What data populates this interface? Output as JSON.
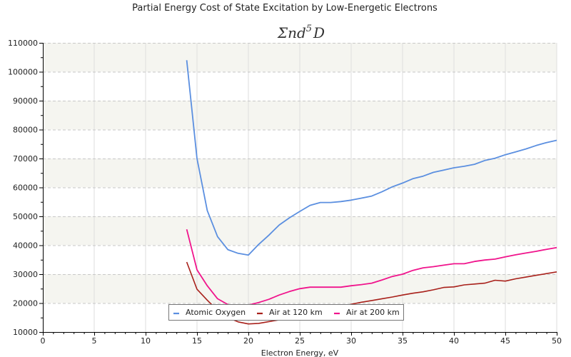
{
  "chart_data": {
    "type": "line",
    "title": "Partial Energy Cost of State Excitation by Low-Energetic Electrons",
    "subtitle": {
      "base": "Σnd",
      "sup": "5",
      "tail": "D"
    },
    "xlabel": "Electron Energy, eV",
    "ylabel": "",
    "xlim": [
      0,
      50
    ],
    "ylim": [
      10000,
      110000
    ],
    "xticks": [
      0,
      5,
      10,
      15,
      20,
      25,
      30,
      35,
      40,
      45,
      50
    ],
    "yticks": [
      10000,
      20000,
      30000,
      40000,
      50000,
      60000,
      70000,
      80000,
      90000,
      100000,
      110000
    ],
    "grid": true,
    "legend_position": "bottom-center",
    "series": [
      {
        "name": "Atomic Oxygen",
        "color": "#5b8fe0",
        "x": [
          14,
          15,
          16,
          17,
          18,
          19,
          20,
          21,
          22,
          23,
          24,
          25,
          26,
          27,
          28,
          29,
          30,
          31,
          32,
          33,
          34,
          35,
          36,
          37,
          38,
          39,
          40,
          41,
          42,
          43,
          44,
          45,
          46,
          47,
          48,
          49,
          50
        ],
        "y": [
          104000,
          70000,
          52000,
          43000,
          38500,
          37200,
          36600,
          40300,
          43500,
          47000,
          49500,
          51700,
          53800,
          54800,
          54800,
          55100,
          55600,
          56300,
          57000,
          58500,
          60200,
          61500,
          63000,
          63900,
          65200,
          66000,
          66800,
          67300,
          68000,
          69300,
          70100,
          71300,
          72300,
          73300,
          74500,
          75500,
          76300
        ]
      },
      {
        "name": "Air at 120 km",
        "color": "#a8201a",
        "x": [
          14,
          15,
          16,
          17,
          18,
          19,
          20,
          21,
          22,
          23,
          24,
          25,
          26,
          27,
          28,
          29,
          30,
          31,
          32,
          33,
          34,
          35,
          36,
          37,
          38,
          39,
          40,
          41,
          42,
          43,
          44,
          45,
          46,
          47,
          48,
          49,
          50
        ],
        "y": [
          34200,
          24800,
          21000,
          17500,
          15000,
          13500,
          12800,
          13000,
          13600,
          14200,
          15000,
          15800,
          16500,
          17200,
          17800,
          18500,
          19600,
          20300,
          20900,
          21500,
          22100,
          22800,
          23400,
          23900,
          24600,
          25400,
          25600,
          26300,
          26600,
          26900,
          27900,
          27600,
          28400,
          29000,
          29600,
          30200,
          30800
        ]
      },
      {
        "name": "Air at 200 km",
        "color": "#f0148c",
        "x": [
          14,
          15,
          16,
          17,
          18,
          19,
          20,
          21,
          22,
          23,
          24,
          25,
          26,
          27,
          28,
          29,
          30,
          31,
          32,
          33,
          34,
          35,
          36,
          37,
          38,
          39,
          40,
          41,
          42,
          43,
          44,
          45,
          46,
          47,
          48,
          49,
          50
        ],
        "y": [
          45500,
          31500,
          26000,
          21500,
          19500,
          18800,
          19300,
          20200,
          21300,
          22800,
          24000,
          25000,
          25500,
          25500,
          25500,
          25500,
          26000,
          26400,
          26900,
          28000,
          29200,
          30000,
          31300,
          32200,
          32600,
          33100,
          33600,
          33600,
          34400,
          34900,
          35200,
          36000,
          36700,
          37300,
          37900,
          38600,
          39200
        ]
      }
    ]
  }
}
